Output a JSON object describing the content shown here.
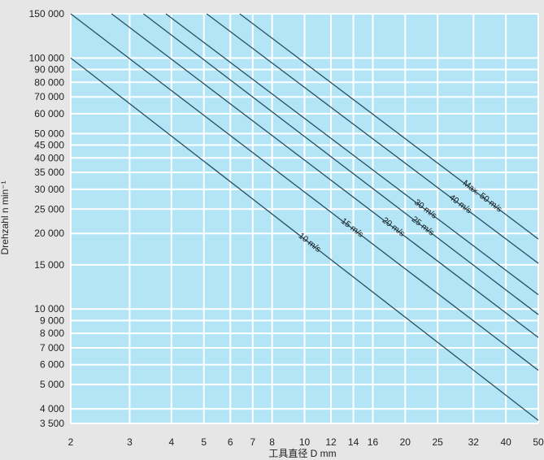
{
  "chart_data": {
    "type": "line",
    "title": "",
    "xlabel": "工具直径 D mm",
    "ylabel": "Drehzahl n min⁻¹",
    "x_scale": "log",
    "y_scale": "log",
    "xlim": [
      2,
      50
    ],
    "ylim": [
      3500,
      150000
    ],
    "grid": true,
    "colors": {
      "plot_background": "#b3e5f7",
      "grid": "#ffffff",
      "line": "#264f63",
      "page_background": "#e6e6e6"
    },
    "x_ticks": [
      {
        "value": 2,
        "label": "2"
      },
      {
        "value": 3,
        "label": "3"
      },
      {
        "value": 4,
        "label": "4"
      },
      {
        "value": 5,
        "label": "5"
      },
      {
        "value": 6,
        "label": "6"
      },
      {
        "value": 7,
        "label": "7"
      },
      {
        "value": 8,
        "label": "8"
      },
      {
        "value": 10,
        "label": "10"
      },
      {
        "value": 12,
        "label": "12"
      },
      {
        "value": 14,
        "label": "14"
      },
      {
        "value": 16,
        "label": "16"
      },
      {
        "value": 20,
        "label": "20"
      },
      {
        "value": 25,
        "label": "25"
      },
      {
        "value": 32,
        "label": "32"
      },
      {
        "value": 40,
        "label": "40"
      },
      {
        "value": 50,
        "label": "50"
      }
    ],
    "y_ticks": [
      {
        "value": 150000,
        "label": "150 000"
      },
      {
        "value": 100000,
        "label": "100 000"
      },
      {
        "value": 90000,
        "label": "90 000"
      },
      {
        "value": 80000,
        "label": "80 000"
      },
      {
        "value": 70000,
        "label": "70 000"
      },
      {
        "value": 60000,
        "label": "60 000"
      },
      {
        "value": 50000,
        "label": "50 000"
      },
      {
        "value": 45000,
        "label": "45 000"
      },
      {
        "value": 40000,
        "label": "40 000"
      },
      {
        "value": 35000,
        "label": "35 000"
      },
      {
        "value": 30000,
        "label": "30 000"
      },
      {
        "value": 25000,
        "label": "25 000"
      },
      {
        "value": 20000,
        "label": "20 000"
      },
      {
        "value": 15000,
        "label": "15 000"
      },
      {
        "value": 10000,
        "label": "10 000"
      },
      {
        "value": 9000,
        "label": "9 000"
      },
      {
        "value": 8000,
        "label": "8 000"
      },
      {
        "value": 7000,
        "label": "7 000"
      },
      {
        "value": 6000,
        "label": "6 000"
      },
      {
        "value": 5000,
        "label": "5 000"
      },
      {
        "value": 4000,
        "label": "4 000"
      },
      {
        "value": 3500,
        "label": "3 500"
      }
    ],
    "series": [
      {
        "label": "10 m/s",
        "speed_m_s": 10,
        "points": [
          [
            2,
            100000
          ],
          [
            50,
            3600
          ]
        ]
      },
      {
        "label": "15 m/s",
        "speed_m_s": 15,
        "points": [
          [
            2,
            150000
          ],
          [
            50,
            5700
          ]
        ]
      },
      {
        "label": "20 m/s",
        "speed_m_s": 20,
        "points": [
          [
            2.65,
            150000
          ],
          [
            50,
            7700
          ]
        ]
      },
      {
        "label": "25 m/s",
        "speed_m_s": 25,
        "points": [
          [
            3.3,
            150000
          ],
          [
            50,
            9500
          ]
        ]
      },
      {
        "label": "30 m/s",
        "speed_m_s": 30,
        "points": [
          [
            3.85,
            150000
          ],
          [
            50,
            11400
          ]
        ]
      },
      {
        "label": "40 m/s",
        "speed_m_s": 40,
        "points": [
          [
            5.1,
            150000
          ],
          [
            50,
            15200
          ]
        ]
      },
      {
        "label": "Max. 50 m/s",
        "speed_m_s": 50,
        "points": [
          [
            6.4,
            150000
          ],
          [
            50,
            19000
          ]
        ]
      }
    ]
  }
}
